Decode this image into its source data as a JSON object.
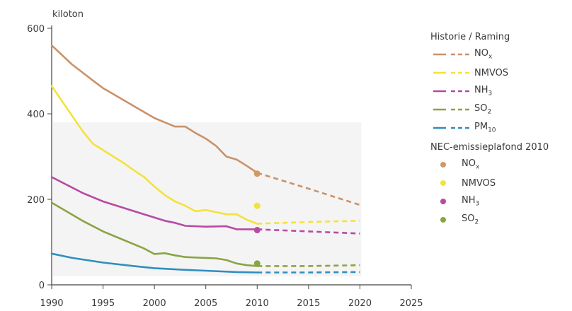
{
  "chart_data": {
    "type": "line",
    "ylabel": "kiloton",
    "xlim": [
      1990,
      2025
    ],
    "ylim": [
      0,
      600
    ],
    "xticks": [
      1990,
      1995,
      2000,
      2005,
      2010,
      2015,
      2020,
      2025
    ],
    "yticks": [
      0,
      200,
      400,
      600
    ],
    "grid": false,
    "legend_position": "right",
    "series": [
      {
        "name": "NOx",
        "color": "#c9926a",
        "history": [
          [
            1990,
            560
          ],
          [
            1992,
            515
          ],
          [
            1994,
            478
          ],
          [
            1995,
            460
          ],
          [
            1997,
            432
          ],
          [
            1998,
            418
          ],
          [
            2000,
            390
          ],
          [
            2001,
            380
          ],
          [
            2002,
            370
          ],
          [
            2003,
            370
          ],
          [
            2004,
            355
          ],
          [
            2005,
            342
          ],
          [
            2006,
            325
          ],
          [
            2007,
            300
          ],
          [
            2008,
            293
          ],
          [
            2009,
            278
          ],
          [
            2010,
            262
          ]
        ],
        "projection": [
          [
            2010,
            262
          ],
          [
            2015,
            225
          ],
          [
            2020,
            187
          ]
        ]
      },
      {
        "name": "NMVOS",
        "color": "#f3e23d",
        "history": [
          [
            1990,
            465
          ],
          [
            1991,
            430
          ],
          [
            1992,
            395
          ],
          [
            1993,
            360
          ],
          [
            1994,
            330
          ],
          [
            1995,
            315
          ],
          [
            1997,
            285
          ],
          [
            1998,
            268
          ],
          [
            1999,
            252
          ],
          [
            2000,
            230
          ],
          [
            2001,
            210
          ],
          [
            2002,
            195
          ],
          [
            2003,
            185
          ],
          [
            2004,
            172
          ],
          [
            2005,
            175
          ],
          [
            2006,
            170
          ],
          [
            2007,
            165
          ],
          [
            2008,
            165
          ],
          [
            2009,
            152
          ],
          [
            2010,
            143
          ]
        ],
        "projection": [
          [
            2010,
            143
          ],
          [
            2015,
            147
          ],
          [
            2020,
            150
          ]
        ]
      },
      {
        "name": "NH3",
        "color": "#b64aa2",
        "history": [
          [
            1990,
            252
          ],
          [
            1993,
            215
          ],
          [
            1995,
            195
          ],
          [
            1997,
            180
          ],
          [
            1999,
            165
          ],
          [
            2001,
            150
          ],
          [
            2002,
            145
          ],
          [
            2003,
            138
          ],
          [
            2005,
            136
          ],
          [
            2007,
            137
          ],
          [
            2008,
            130
          ],
          [
            2010,
            130
          ]
        ],
        "projection": [
          [
            2010,
            130
          ],
          [
            2015,
            125
          ],
          [
            2020,
            120
          ]
        ]
      },
      {
        "name": "SO2",
        "color": "#8aa443",
        "history": [
          [
            1990,
            192
          ],
          [
            1993,
            150
          ],
          [
            1995,
            125
          ],
          [
            1997,
            105
          ],
          [
            1999,
            85
          ],
          [
            2000,
            72
          ],
          [
            2001,
            74
          ],
          [
            2002,
            69
          ],
          [
            2003,
            65
          ],
          [
            2004,
            64
          ],
          [
            2005,
            63
          ],
          [
            2006,
            62
          ],
          [
            2007,
            58
          ],
          [
            2008,
            50
          ],
          [
            2009,
            46
          ],
          [
            2010,
            44
          ]
        ],
        "projection": [
          [
            2010,
            44
          ],
          [
            2015,
            44
          ],
          [
            2020,
            46
          ]
        ]
      },
      {
        "name": "PM10",
        "color": "#2f8ec0",
        "history": [
          [
            1990,
            73
          ],
          [
            1992,
            63
          ],
          [
            1995,
            52
          ],
          [
            1998,
            44
          ],
          [
            2000,
            39
          ],
          [
            2003,
            35
          ],
          [
            2005,
            33
          ],
          [
            2008,
            30
          ],
          [
            2010,
            29
          ]
        ],
        "projection": [
          [
            2010,
            29
          ],
          [
            2015,
            29
          ],
          [
            2020,
            30
          ]
        ]
      }
    ],
    "nec_ceilings_2010": [
      {
        "name": "NOx",
        "value": 260,
        "color": "#d39863"
      },
      {
        "name": "NMVOS",
        "value": 185,
        "color": "#f3e23d"
      },
      {
        "name": "NH3",
        "value": 128,
        "color": "#b64aa2"
      },
      {
        "name": "SO2",
        "value": 50,
        "color": "#8aa443"
      }
    ]
  },
  "legend": {
    "heading_history": "Historie / Raming",
    "heading_ceiling": "NEC-emissieplafond 2010",
    "entries": [
      {
        "base": "NO",
        "sub": "x",
        "color": "#c9926a"
      },
      {
        "base": "NMVOS",
        "sub": "",
        "color": "#f3e23d"
      },
      {
        "base": "NH",
        "sub": "3",
        "color": "#b64aa2"
      },
      {
        "base": "SO",
        "sub": "2",
        "color": "#8aa443"
      },
      {
        "base": "PM",
        "sub": "10",
        "color": "#2f8ec0"
      }
    ],
    "ceiling_entries": [
      {
        "base": "NO",
        "sub": "x",
        "color": "#d39863"
      },
      {
        "base": "NMVOS",
        "sub": "",
        "color": "#f3e23d"
      },
      {
        "base": "NH",
        "sub": "3",
        "color": "#b64aa2"
      },
      {
        "base": "SO",
        "sub": "2",
        "color": "#8aa443"
      }
    ]
  }
}
